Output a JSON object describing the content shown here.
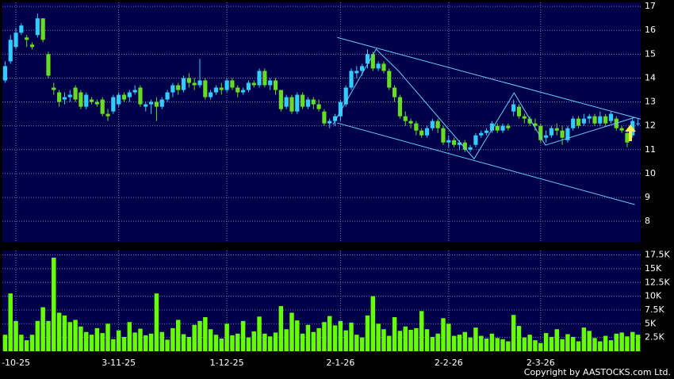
{
  "chart_data": [
    {
      "type": "candlestick",
      "up_color": "#33ccff",
      "down_color": "#66dd22",
      "background": "#00004a",
      "grid": true,
      "ylim": [
        7.14,
        17.17
      ],
      "yticks": [
        8,
        9,
        10,
        11,
        12,
        13,
        14,
        15,
        16,
        17
      ],
      "open": [
        13.9,
        14.7,
        15.3,
        15.9,
        15.7,
        15.4,
        15.8,
        16.5,
        15.0,
        13.6,
        13.4,
        13.1,
        13.2,
        13.6,
        13.4,
        12.8,
        13.1,
        13.0,
        13.1,
        12.5,
        12.6,
        12.9,
        13.3,
        13.2,
        13.4,
        13.6,
        12.8,
        12.9,
        13.0,
        12.8,
        13.1,
        13.4,
        13.7,
        13.5,
        14.0,
        13.8,
        13.7,
        13.9,
        13.2,
        13.4,
        13.6,
        13.5,
        13.9,
        13.6,
        13.4,
        13.5,
        13.8,
        13.7,
        14.3,
        13.7,
        13.9,
        13.5,
        12.8,
        13.2,
        12.6,
        13.3,
        12.8,
        13.1,
        12.9,
        12.6,
        12.1,
        12.2,
        12.4,
        12.9,
        13.6,
        14.2,
        14.3,
        14.6,
        15.0,
        14.4,
        14.6,
        14.3,
        13.6,
        13.2,
        12.4,
        12.2,
        12.1,
        11.8,
        11.6,
        11.9,
        12.2,
        11.9,
        11.3,
        11.4,
        11.2,
        11.3,
        11.0,
        11.2,
        11.6,
        11.7,
        11.8,
        12.0,
        11.8,
        12.0,
        12.6,
        12.8,
        12.4,
        12.3,
        12.1,
        12.0,
        11.5,
        11.6,
        11.9,
        11.8,
        11.4,
        11.9,
        12.3,
        12.1,
        12.3,
        12.4,
        12.1,
        12.4,
        12.2,
        12.3,
        11.9,
        11.7,
        11.6,
        12.1
      ],
      "high": [
        14.7,
        15.8,
        16.1,
        16.3,
        15.8,
        15.5,
        16.7,
        16.5,
        15.1,
        13.8,
        13.5,
        13.4,
        13.5,
        13.7,
        13.5,
        13.4,
        13.2,
        13.1,
        13.2,
        12.7,
        13.3,
        13.4,
        13.4,
        13.5,
        13.7,
        13.7,
        13.0,
        13.1,
        13.2,
        13.2,
        13.5,
        13.8,
        13.8,
        14.1,
        14.2,
        14.0,
        14.8,
        14.0,
        13.5,
        13.7,
        13.8,
        14.0,
        14.0,
        13.7,
        13.6,
        13.9,
        13.9,
        14.4,
        14.4,
        14.0,
        14.0,
        13.5,
        13.3,
        13.3,
        13.4,
        13.4,
        13.2,
        13.2,
        13.1,
        12.7,
        12.3,
        12.5,
        13.1,
        13.7,
        14.4,
        14.5,
        14.6,
        15.2,
        15.1,
        14.7,
        14.7,
        14.4,
        13.7,
        13.3,
        12.6,
        12.3,
        12.2,
        11.9,
        12.0,
        12.3,
        12.3,
        12.0,
        11.6,
        11.5,
        11.4,
        11.4,
        11.2,
        11.7,
        11.8,
        11.9,
        12.2,
        12.1,
        12.1,
        12.1,
        13.1,
        12.9,
        12.5,
        12.4,
        12.3,
        12.1,
        11.8,
        12.0,
        12.1,
        12.0,
        12.0,
        12.4,
        12.4,
        12.5,
        12.5,
        12.5,
        12.6,
        12.5,
        12.6,
        12.4,
        12.0,
        11.8,
        12.3,
        12.3
      ],
      "low": [
        13.8,
        14.6,
        15.2,
        15.8,
        15.3,
        15.2,
        15.7,
        15.5,
        14.0,
        13.3,
        12.8,
        12.9,
        13.0,
        13.0,
        12.7,
        12.7,
        12.9,
        12.8,
        12.4,
        12.2,
        12.5,
        12.8,
        13.0,
        13.0,
        13.3,
        12.8,
        12.6,
        12.5,
        12.2,
        12.7,
        13.0,
        13.2,
        13.3,
        13.4,
        13.6,
        13.5,
        13.6,
        13.1,
        13.1,
        13.3,
        13.3,
        13.4,
        13.5,
        13.2,
        13.3,
        13.4,
        13.6,
        13.6,
        13.6,
        13.5,
        13.3,
        12.6,
        12.7,
        12.5,
        12.5,
        12.7,
        12.7,
        12.7,
        12.6,
        12.0,
        11.9,
        12.0,
        12.2,
        12.8,
        13.5,
        14.0,
        14.1,
        14.4,
        14.3,
        14.3,
        14.2,
        13.5,
        13.0,
        12.3,
        12.0,
        11.9,
        11.6,
        11.5,
        11.5,
        11.8,
        11.7,
        11.2,
        11.1,
        11.1,
        11.0,
        10.9,
        10.9,
        11.1,
        11.5,
        11.6,
        11.7,
        11.7,
        11.7,
        11.8,
        12.4,
        12.3,
        12.1,
        12.0,
        11.8,
        11.3,
        11.3,
        11.5,
        11.6,
        11.2,
        11.3,
        11.8,
        11.9,
        12.0,
        12.1,
        12.0,
        12.0,
        12.0,
        12.1,
        11.8,
        11.7,
        11.1,
        11.5,
        12.0
      ],
      "close": [
        14.5,
        15.6,
        15.9,
        16.2,
        15.6,
        15.3,
        16.5,
        15.6,
        14.1,
        13.5,
        13.0,
        13.2,
        13.3,
        13.1,
        12.8,
        13.3,
        13.0,
        12.9,
        12.5,
        12.4,
        13.2,
        13.3,
        13.1,
        13.4,
        13.5,
        12.9,
        12.9,
        13.0,
        12.8,
        13.1,
        13.4,
        13.7,
        13.5,
        14.0,
        13.8,
        13.7,
        13.9,
        13.2,
        13.4,
        13.6,
        13.5,
        13.9,
        13.6,
        13.4,
        13.5,
        13.8,
        13.7,
        14.3,
        13.7,
        13.9,
        13.5,
        12.7,
        13.2,
        12.6,
        13.3,
        12.8,
        13.1,
        12.9,
        12.7,
        12.1,
        12.2,
        12.4,
        13.0,
        13.6,
        14.3,
        14.3,
        14.5,
        15.0,
        14.4,
        14.6,
        14.3,
        13.6,
        13.2,
        12.4,
        12.2,
        12.1,
        11.8,
        11.6,
        11.9,
        12.2,
        11.9,
        11.3,
        11.4,
        11.2,
        11.3,
        11.0,
        11.1,
        11.6,
        11.7,
        11.8,
        12.1,
        11.8,
        12.0,
        11.9,
        12.9,
        12.4,
        12.3,
        12.1,
        12.0,
        11.4,
        11.6,
        11.9,
        11.8,
        11.5,
        11.9,
        12.3,
        12.0,
        12.3,
        12.4,
        12.1,
        12.4,
        12.1,
        12.5,
        11.9,
        11.8,
        11.3,
        12.2,
        12.1
      ],
      "trendline_color": "#66ccff",
      "trendlines": [
        {
          "x": [
            61.4,
            117.5
          ],
          "y": [
            15.7,
            12.28
          ]
        },
        {
          "x": [
            61.4,
            116.4
          ],
          "y": [
            12.12,
            8.7
          ]
        },
        {
          "x": [
            60.6,
            68.6,
            72.8,
            86.7,
            94.1,
            99.9,
            116.4
          ],
          "y": [
            12.05,
            15.21,
            14.28,
            10.62,
            13.38,
            11.19,
            12.35
          ]
        }
      ]
    },
    {
      "type": "bar",
      "color": "#66ff00",
      "background": "#00004a",
      "grid": true,
      "ylim": [
        0,
        18300
      ],
      "yticks": [
        {
          "value": 2500,
          "label": "2.5K"
        },
        {
          "value": 5000,
          "label": "5K"
        },
        {
          "value": 7500,
          "label": "7.5K"
        },
        {
          "value": 10000,
          "label": "10K"
        },
        {
          "value": 12500,
          "label": "12.5K"
        },
        {
          "value": 15000,
          "label": "15K"
        },
        {
          "value": 17500,
          "label": "17.5K"
        }
      ],
      "categories": [
        null,
        null,
        "-10-25",
        null,
        null,
        null,
        null,
        null,
        null,
        null,
        null,
        null,
        null,
        null,
        null,
        null,
        null,
        null,
        null,
        null,
        null,
        "3-11-25",
        null,
        null,
        null,
        null,
        null,
        null,
        null,
        null,
        null,
        null,
        null,
        null,
        null,
        null,
        null,
        null,
        null,
        null,
        null,
        "1-12-25",
        null,
        null,
        null,
        null,
        null,
        null,
        null,
        null,
        null,
        null,
        null,
        null,
        null,
        null,
        null,
        null,
        null,
        null,
        null,
        null,
        "2-1-26",
        null,
        null,
        null,
        null,
        null,
        null,
        null,
        null,
        null,
        null,
        null,
        null,
        null,
        null,
        null,
        null,
        null,
        null,
        null,
        "2-2-26",
        null,
        null,
        null,
        null,
        null,
        null,
        null,
        null,
        null,
        null,
        null,
        null,
        null,
        null,
        null,
        null,
        "2-3-26",
        null,
        null,
        null,
        null,
        null,
        null,
        null,
        null,
        null,
        null,
        null,
        null,
        null,
        null,
        null,
        null,
        null,
        null
      ],
      "values": [
        3000,
        10500,
        5500,
        3000,
        2000,
        3000,
        5500,
        8000,
        5500,
        17000,
        7000,
        6500,
        5300,
        5700,
        4500,
        3500,
        3000,
        4200,
        3300,
        5000,
        2200,
        3800,
        2600,
        5300,
        3400,
        4100,
        2900,
        3200,
        10500,
        3500,
        2100,
        4200,
        5700,
        3100,
        2600,
        4800,
        5500,
        6200,
        4000,
        3000,
        2300,
        5000,
        2900,
        3200,
        5500,
        2500,
        3600,
        6300,
        3200,
        2700,
        3400,
        8200,
        4000,
        7000,
        5600,
        3200,
        4800,
        3500,
        4200,
        5300,
        6400,
        4700,
        5500,
        3800,
        5200,
        3000,
        2500,
        6500,
        10000,
        5000,
        4000,
        2800,
        6200,
        3700,
        4500,
        3900,
        4200,
        7300,
        4000,
        2600,
        3200,
        6000,
        5000,
        2800,
        3000,
        3500,
        2500,
        4300,
        2800,
        2300,
        3200,
        2400,
        2200,
        1800,
        6600,
        4600,
        2500,
        3000,
        2000,
        1500,
        3300,
        2600,
        4000,
        2200,
        3100,
        2600,
        1800,
        4300,
        3700,
        2400,
        1800,
        2800,
        2000,
        3200,
        3400,
        2700,
        3500,
        3000
      ]
    }
  ],
  "copyright": "Copyright by AASTOCKS.com Ltd."
}
